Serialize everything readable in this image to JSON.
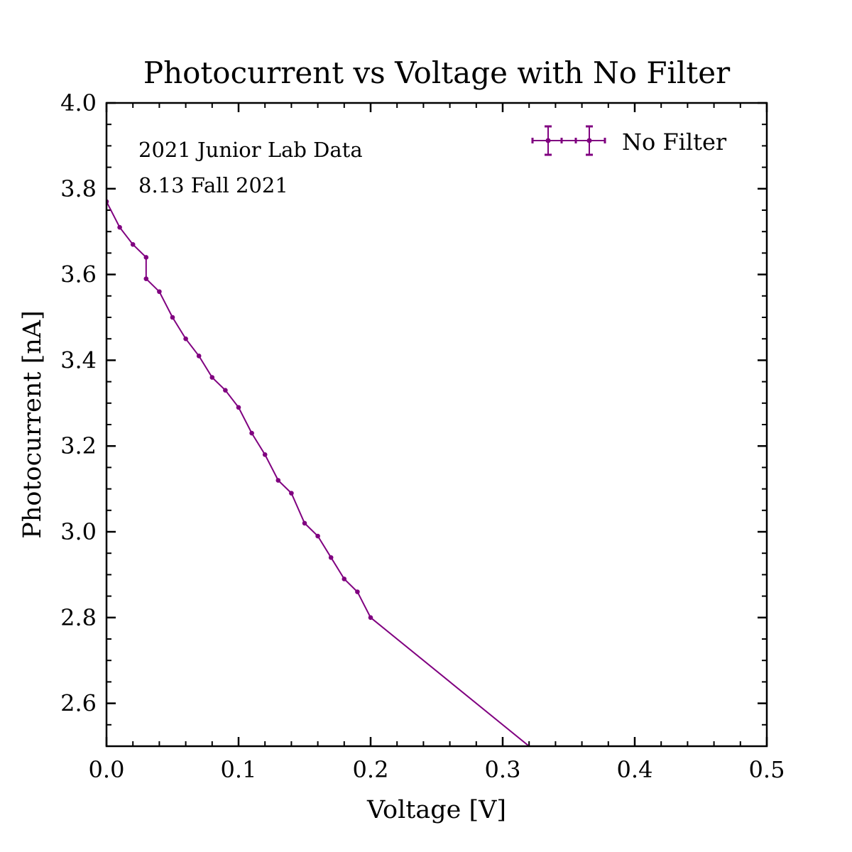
{
  "chart_data": {
    "type": "line",
    "title": "Photocurrent vs Voltage with No Filter",
    "xlabel": "Voltage [V]",
    "ylabel": "Photocurrent [nA]",
    "xlim": [
      0.0,
      0.5
    ],
    "ylim": [
      2.5,
      4.0
    ],
    "xticks": [
      "0.0",
      "0.1",
      "0.2",
      "0.3",
      "0.4",
      "0.5"
    ],
    "yticks": [
      "2.6",
      "2.8",
      "3.0",
      "3.2",
      "3.4",
      "3.6",
      "3.8",
      "4.0"
    ],
    "grid": false,
    "legend_position": "top-right",
    "annotations": [
      "2021 Junior Lab Data",
      "8.13 Fall 2021"
    ],
    "color": "#800080",
    "series": [
      {
        "name": "No Filter",
        "x": [
          0.0,
          0.01,
          0.02,
          0.03,
          0.03,
          0.04,
          0.05,
          0.06,
          0.07,
          0.08,
          0.09,
          0.1,
          0.11,
          0.12,
          0.13,
          0.14,
          0.15,
          0.16,
          0.17,
          0.18,
          0.19,
          0.2,
          0.4
        ],
        "y": [
          3.77,
          3.71,
          3.67,
          3.64,
          3.59,
          3.56,
          3.5,
          3.45,
          3.41,
          3.36,
          3.33,
          3.29,
          3.23,
          3.18,
          3.12,
          3.09,
          3.02,
          2.99,
          2.94,
          2.89,
          2.86,
          2.8,
          2.3
        ]
      }
    ]
  }
}
